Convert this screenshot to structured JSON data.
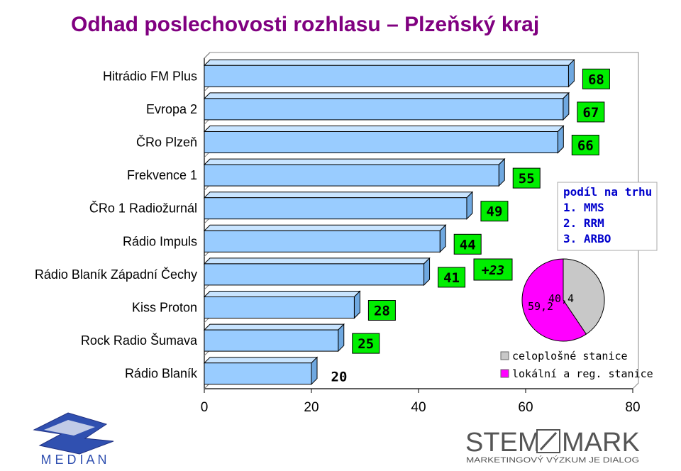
{
  "title": "Odhad poslechovosti rozhlasu – Plzeňský kraj",
  "colors": {
    "bar": "#99CCFF",
    "label_box": "#00EE00",
    "title": "#800080",
    "pie_celoplosne": "#C8C8C8",
    "pie_lokalni": "#FF00FF",
    "note": "#0000CC"
  },
  "chart_data": [
    {
      "type": "bar",
      "orientation": "horizontal",
      "categories": [
        "Hitrádio FM Plus",
        "Evropa 2",
        "ČRo Plzeň",
        "Frekvence 1",
        "ČRo 1 Radiožurnál",
        "Rádio Impuls",
        "Rádio Blaník Západní Čechy",
        "Kiss Proton",
        "Rock Radio Šumava",
        "Rádio Blaník"
      ],
      "values": [
        68,
        67,
        66,
        55,
        49,
        44,
        41,
        28,
        25,
        20
      ],
      "data_labels": [
        "68",
        "67",
        "66",
        "55",
        "49",
        "44",
        "41",
        "28",
        "25",
        "20"
      ],
      "xlim": [
        0,
        80
      ],
      "xticks": [
        "0",
        "20",
        "40",
        "60",
        "80"
      ],
      "annotation": "+23"
    },
    {
      "type": "pie",
      "categories": [
        "celoplošné stanice",
        "lokální a reg. stanice"
      ],
      "values": [
        40.4,
        59.2
      ],
      "data_labels": [
        "40,4",
        "59,2"
      ],
      "legend_position": "bottom"
    }
  ],
  "market_share": {
    "heading": "podíl na trhu",
    "items": [
      "1. MMS",
      "2. RRM",
      "3. ARBO"
    ]
  },
  "logos": {
    "median": "M E D I A N",
    "stem_top": "STEM",
    "stem_mark": "MARK",
    "stem_tagline": "MARKETINGOVÝ VÝZKUM JE DIALOG"
  }
}
